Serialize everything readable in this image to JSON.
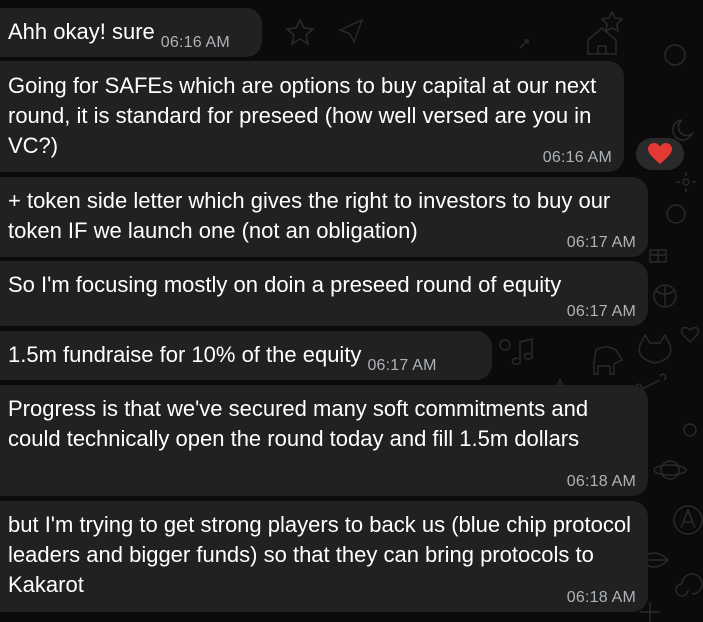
{
  "messages": [
    {
      "text": "Ahh okay! sure",
      "time": "06:16 AM"
    },
    {
      "text": "Going for SAFEs which are options to buy capital at our next round, it is standard for preseed (how well versed are you in VC?)",
      "time": "06:16 AM",
      "reaction": "heart"
    },
    {
      "text": "+ token side letter which gives the right to investors to buy our token IF we launch one (not an obligation)",
      "time": "06:17 AM"
    },
    {
      "text": "So I'm focusing mostly on doin a preseed round of equity",
      "time": "06:17 AM"
    },
    {
      "text": "1.5m fundraise for 10% of the equity",
      "time": "06:17 AM"
    },
    {
      "text": "Progress is that we've secured many soft commitments and could technically open the round today and fill 1.5m dollars",
      "time": "06:18 AM"
    },
    {
      "text": "but I'm trying to get strong players to back us (blue chip protocol leaders and bigger funds) so that they can bring protocols to Kakarot",
      "time": "06:18 AM"
    }
  ],
  "colors": {
    "background": "#0b0b0b",
    "bubble": "#212121",
    "text": "#ffffff",
    "timestamp": "#aeb3b8",
    "reaction_heart": "#e53935"
  },
  "icons": {
    "reaction": "heart-icon"
  }
}
